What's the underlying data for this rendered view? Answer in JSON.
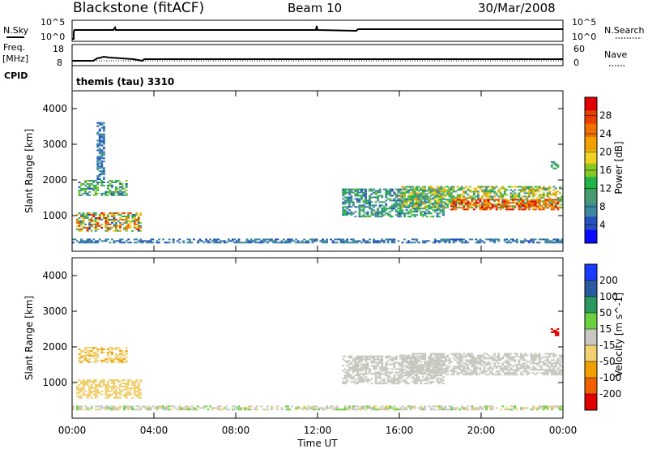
{
  "header": {
    "station": "Blackstone (fitACF)",
    "beam": "Beam 10",
    "date": "30/Mar/2008"
  },
  "top_panels": {
    "nsky_label": "N.Sky",
    "nsky_ticks": [
      "10^5",
      "10^0"
    ],
    "nsearch_label": "N.Search",
    "nsearch_ticks": [
      "10^5",
      "10^0"
    ],
    "freq_label": "Freq.",
    "freq_unit": "[MHz]",
    "freq_ticks": [
      "18",
      "8"
    ],
    "nave_label": "Nave",
    "nave_ticks": [
      "60",
      "0"
    ],
    "cpid_label": "CPID",
    "cpid_text": "themis (tau) 3310"
  },
  "colors": {
    "power_scale": [
      "#0a0aff",
      "#2650c0",
      "#3d8aa0",
      "#4a9a70",
      "#22b24a",
      "#88c823",
      "#f0d020",
      "#f0a000",
      "#f07000",
      "#e84000",
      "#e00000"
    ],
    "velocity_scale": [
      "#e00000",
      "#f06000",
      "#f0a000",
      "#f0d070",
      "#c8c8c0",
      "#6ad040",
      "#2a9a60",
      "#2a5aa0",
      "#1a3aff"
    ],
    "line": "#000000"
  },
  "chart_data": [
    {
      "type": "heatmap",
      "name": "power",
      "ylabel": "Slant Range [km]",
      "ylim": [
        0,
        4500
      ],
      "y_ticks": [
        "4000",
        "3000",
        "2000",
        "1000"
      ],
      "y_tick_values": [
        4000,
        3000,
        2000,
        1000
      ],
      "colorbar_label": "Power [dB]",
      "colorbar_ticks": [
        "28",
        "24",
        "20",
        "16",
        "12",
        "8",
        "4"
      ],
      "colorbar_range": [
        0,
        30
      ],
      "regions": [
        {
          "t": [
            0.2,
            3.4
          ],
          "r": [
            550,
            1050
          ],
          "v": [
            4,
            28
          ]
        },
        {
          "t": [
            0.3,
            2.7
          ],
          "r": [
            1550,
            2000
          ],
          "v": [
            4,
            16
          ]
        },
        {
          "t": [
            1.2,
            1.6
          ],
          "r": [
            2000,
            3600
          ],
          "v": [
            4,
            8
          ]
        },
        {
          "t": [
            0.0,
            24.0
          ],
          "r": [
            220,
            330
          ],
          "v": [
            4,
            8
          ]
        },
        {
          "t": [
            13.2,
            18.2
          ],
          "r": [
            950,
            1750
          ],
          "v": [
            4,
            14
          ]
        },
        {
          "t": [
            16.0,
            24.0
          ],
          "r": [
            1200,
            1800
          ],
          "v": [
            6,
            22
          ]
        },
        {
          "t": [
            18.5,
            23.8
          ],
          "r": [
            1150,
            1450
          ],
          "v": [
            20,
            30
          ]
        },
        {
          "t": [
            23.4,
            23.8
          ],
          "r": [
            2300,
            2500
          ],
          "v": [
            8,
            12
          ]
        }
      ]
    },
    {
      "type": "heatmap",
      "name": "velocity",
      "ylabel": "Slant Range [km]",
      "ylim": [
        0,
        4500
      ],
      "y_ticks": [
        "4000",
        "3000",
        "2000",
        "1000"
      ],
      "y_tick_values": [
        4000,
        3000,
        2000,
        1000
      ],
      "xlabel": "Time UT",
      "x_ticks": [
        "00:00",
        "04:00",
        "08:00",
        "12:00",
        "16:00",
        "20:00",
        "00:00"
      ],
      "x_tick_values": [
        0,
        4,
        8,
        12,
        16,
        20,
        24
      ],
      "colorbar_label": "Velocity [m s^-1]",
      "colorbar_ticks": [
        "200",
        "100",
        "50",
        "15",
        "-15",
        "-50",
        "-100",
        "-200"
      ],
      "colorbar_range": [
        -250,
        250
      ],
      "regions": [
        {
          "t": [
            0.2,
            3.4
          ],
          "r": [
            550,
            1050
          ],
          "v": [
            -50,
            -30
          ]
        },
        {
          "t": [
            0.3,
            2.7
          ],
          "r": [
            1550,
            2000
          ],
          "v": [
            -100,
            -50
          ]
        },
        {
          "t": [
            0.0,
            24.0
          ],
          "r": [
            220,
            330
          ],
          "v": [
            -50,
            50
          ]
        },
        {
          "t": [
            13.2,
            18.2
          ],
          "r": [
            950,
            1750
          ],
          "v": [
            -15,
            15
          ]
        },
        {
          "t": [
            16.0,
            24.0
          ],
          "r": [
            1200,
            1800
          ],
          "v": [
            -15,
            15
          ]
        },
        {
          "t": [
            23.4,
            23.8
          ],
          "r": [
            2300,
            2500
          ],
          "v": [
            -250,
            -200
          ]
        }
      ]
    }
  ]
}
